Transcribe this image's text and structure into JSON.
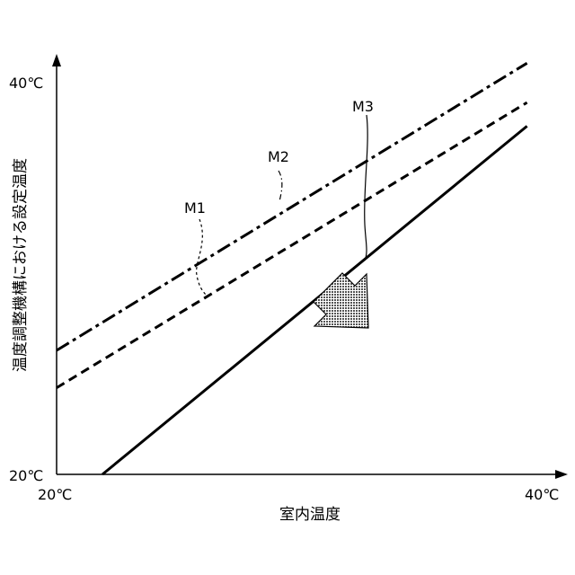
{
  "chart_data": {
    "type": "line",
    "xlabel": "室内温度",
    "ylabel": "温度調整機構における設定温度",
    "x_ticks": [
      "20℃",
      "40℃"
    ],
    "y_ticks": [
      "20℃",
      "40℃"
    ],
    "xlim": [
      20,
      40
    ],
    "ylim": [
      20,
      40
    ],
    "grid": false,
    "series": [
      {
        "name": "M1",
        "style": "dashed",
        "points": [
          [
            20,
            24.4
          ],
          [
            39.5,
            38.9
          ]
        ]
      },
      {
        "name": "M2",
        "style": "dash-dot",
        "points": [
          [
            20,
            26.3
          ],
          [
            39.5,
            40.9
          ]
        ]
      },
      {
        "name": "M3",
        "style": "solid",
        "points": [
          [
            21.9,
            20.0
          ],
          [
            39.5,
            37.7
          ]
        ]
      }
    ],
    "annotations": [
      {
        "type": "arrow",
        "direction": "down-right",
        "fill": "dotted-gray",
        "note": "shift from M1/M2 toward M3"
      }
    ],
    "colors": {
      "lines": "#000000",
      "arrow_fill": "#8c8c8c"
    }
  }
}
